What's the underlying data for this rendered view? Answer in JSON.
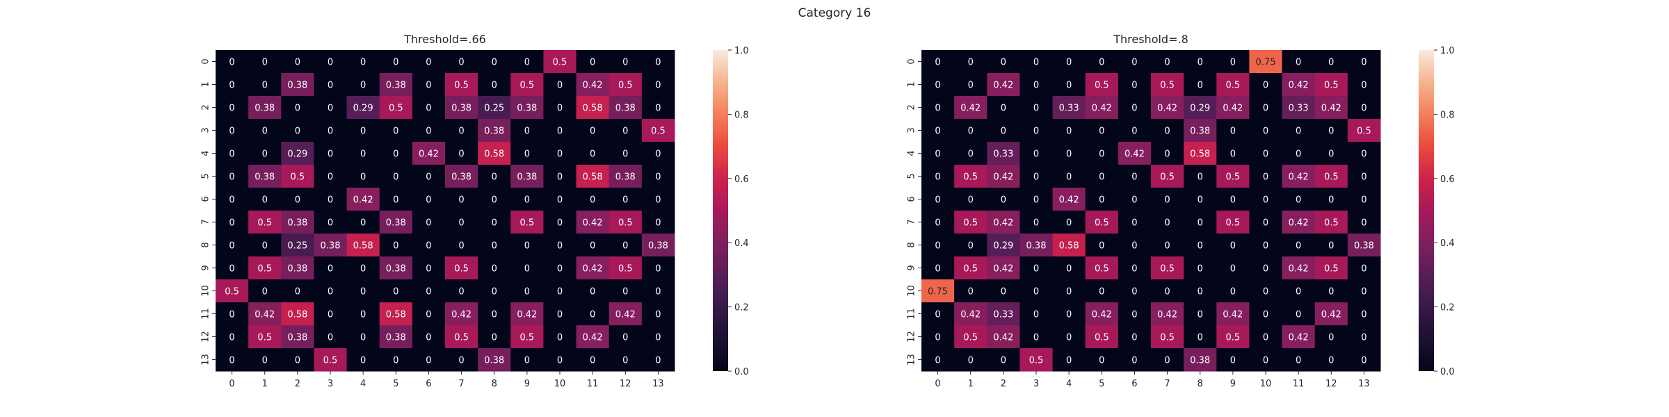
{
  "figure": {
    "suptitle": "Category 16"
  },
  "chart_data": [
    {
      "type": "heatmap",
      "title": "Threshold=.66",
      "xlabel": "",
      "ylabel": "",
      "x_ticks": [
        "0",
        "1",
        "2",
        "3",
        "4",
        "5",
        "6",
        "7",
        "8",
        "9",
        "10",
        "11",
        "12",
        "13"
      ],
      "y_ticks": [
        "0",
        "1",
        "2",
        "3",
        "4",
        "5",
        "6",
        "7",
        "8",
        "9",
        "10",
        "11",
        "12",
        "13"
      ],
      "colorbar": {
        "range": [
          0,
          1
        ],
        "ticks": [
          "0.0",
          "0.2",
          "0.4",
          "0.6",
          "0.8",
          "1.0"
        ]
      },
      "cell_labels": [
        [
          "0",
          "0",
          "0",
          "0",
          "0",
          "0",
          "0",
          "0",
          "0",
          "0",
          "0.5",
          "0",
          "0",
          "0"
        ],
        [
          "0",
          "0",
          "0.38",
          "0",
          "0",
          "0.38",
          "0",
          "0.5",
          "0",
          "0.5",
          "0",
          "0.42",
          "0.5",
          "0"
        ],
        [
          "0",
          "0.38",
          "0",
          "0",
          "0.29",
          "0.5",
          "0",
          "0.38",
          "0.25",
          "0.38",
          "0",
          "0.58",
          "0.38",
          "0"
        ],
        [
          "0",
          "0",
          "0",
          "0",
          "0",
          "0",
          "0",
          "0",
          "0.38",
          "0",
          "0",
          "0",
          "0",
          "0.5"
        ],
        [
          "0",
          "0",
          "0.29",
          "0",
          "0",
          "0",
          "0.42",
          "0",
          "0.58",
          "0",
          "0",
          "0",
          "0",
          "0"
        ],
        [
          "0",
          "0.38",
          "0.5",
          "0",
          "0",
          "0",
          "0",
          "0.38",
          "0",
          "0.38",
          "0",
          "0.58",
          "0.38",
          "0"
        ],
        [
          "0",
          "0",
          "0",
          "0",
          "0.42",
          "0",
          "0",
          "0",
          "0",
          "0",
          "0",
          "0",
          "0",
          "0"
        ],
        [
          "0",
          "0.5",
          "0.38",
          "0",
          "0",
          "0.38",
          "0",
          "0",
          "0",
          "0.5",
          "0",
          "0.42",
          "0.5",
          "0"
        ],
        [
          "0",
          "0",
          "0.25",
          "0.38",
          "0.58",
          "0",
          "0",
          "0",
          "0",
          "0",
          "0",
          "0",
          "0",
          "0.38"
        ],
        [
          "0",
          "0.5",
          "0.38",
          "0",
          "0",
          "0.38",
          "0",
          "0.5",
          "0",
          "0",
          "0",
          "0.42",
          "0.5",
          "0"
        ],
        [
          "0.5",
          "0",
          "0",
          "0",
          "0",
          "0",
          "0",
          "0",
          "0",
          "0",
          "0",
          "0",
          "0",
          "0"
        ],
        [
          "0",
          "0.42",
          "0.58",
          "0",
          "0",
          "0.58",
          "0",
          "0.42",
          "0",
          "0.42",
          "0",
          "0",
          "0.42",
          "0"
        ],
        [
          "0",
          "0.5",
          "0.38",
          "0",
          "0",
          "0.38",
          "0",
          "0.5",
          "0",
          "0.5",
          "0",
          "0.42",
          "0",
          "0"
        ],
        [
          "0",
          "0",
          "0",
          "0.5",
          "0",
          "0",
          "0",
          "0",
          "0.38",
          "0",
          "0",
          "0",
          "0",
          "0"
        ]
      ]
    },
    {
      "type": "heatmap",
      "title": "Threshold=.8",
      "xlabel": "",
      "ylabel": "",
      "x_ticks": [
        "0",
        "1",
        "2",
        "3",
        "4",
        "5",
        "6",
        "7",
        "8",
        "9",
        "10",
        "11",
        "12",
        "13"
      ],
      "y_ticks": [
        "0",
        "1",
        "2",
        "3",
        "4",
        "5",
        "6",
        "7",
        "8",
        "9",
        "10",
        "11",
        "12",
        "13"
      ],
      "colorbar": {
        "range": [
          0,
          1
        ],
        "ticks": [
          "0.0",
          "0.2",
          "0.4",
          "0.6",
          "0.8",
          "1.0"
        ]
      },
      "cell_labels": [
        [
          "0",
          "0",
          "0",
          "0",
          "0",
          "0",
          "0",
          "0",
          "0",
          "0",
          "0.75",
          "0",
          "0",
          "0"
        ],
        [
          "0",
          "0",
          "0.42",
          "0",
          "0",
          "0.5",
          "0",
          "0.5",
          "0",
          "0.5",
          "0",
          "0.42",
          "0.5",
          "0"
        ],
        [
          "0",
          "0.42",
          "0",
          "0",
          "0.33",
          "0.42",
          "0",
          "0.42",
          "0.29",
          "0.42",
          "0",
          "0.33",
          "0.42",
          "0"
        ],
        [
          "0",
          "0",
          "0",
          "0",
          "0",
          "0",
          "0",
          "0",
          "0.38",
          "0",
          "0",
          "0",
          "0",
          "0.5"
        ],
        [
          "0",
          "0",
          "0.33",
          "0",
          "0",
          "0",
          "0.42",
          "0",
          "0.58",
          "0",
          "0",
          "0",
          "0",
          "0"
        ],
        [
          "0",
          "0.5",
          "0.42",
          "0",
          "0",
          "0",
          "0",
          "0.5",
          "0",
          "0.5",
          "0",
          "0.42",
          "0.5",
          "0"
        ],
        [
          "0",
          "0",
          "0",
          "0",
          "0.42",
          "0",
          "0",
          "0",
          "0",
          "0",
          "0",
          "0",
          "0",
          "0"
        ],
        [
          "0",
          "0.5",
          "0.42",
          "0",
          "0",
          "0.5",
          "0",
          "0",
          "0",
          "0.5",
          "0",
          "0.42",
          "0.5",
          "0"
        ],
        [
          "0",
          "0",
          "0.29",
          "0.38",
          "0.58",
          "0",
          "0",
          "0",
          "0",
          "0",
          "0",
          "0",
          "0",
          "0.38"
        ],
        [
          "0",
          "0.5",
          "0.42",
          "0",
          "0",
          "0.5",
          "0",
          "0.5",
          "0",
          "0",
          "0",
          "0.42",
          "0.5",
          "0"
        ],
        [
          "0.75",
          "0",
          "0",
          "0",
          "0",
          "0",
          "0",
          "0",
          "0",
          "0",
          "0",
          "0",
          "0",
          "0"
        ],
        [
          "0",
          "0.42",
          "0.33",
          "0",
          "0",
          "0.42",
          "0",
          "0.42",
          "0",
          "0.42",
          "0",
          "0",
          "0.42",
          "0"
        ],
        [
          "0",
          "0.5",
          "0.42",
          "0",
          "0",
          "0.5",
          "0",
          "0.5",
          "0",
          "0.5",
          "0",
          "0.42",
          "0",
          "0"
        ],
        [
          "0",
          "0",
          "0",
          "0.5",
          "0",
          "0",
          "0",
          "0",
          "0.38",
          "0",
          "0",
          "0",
          "0",
          "0"
        ]
      ]
    }
  ]
}
